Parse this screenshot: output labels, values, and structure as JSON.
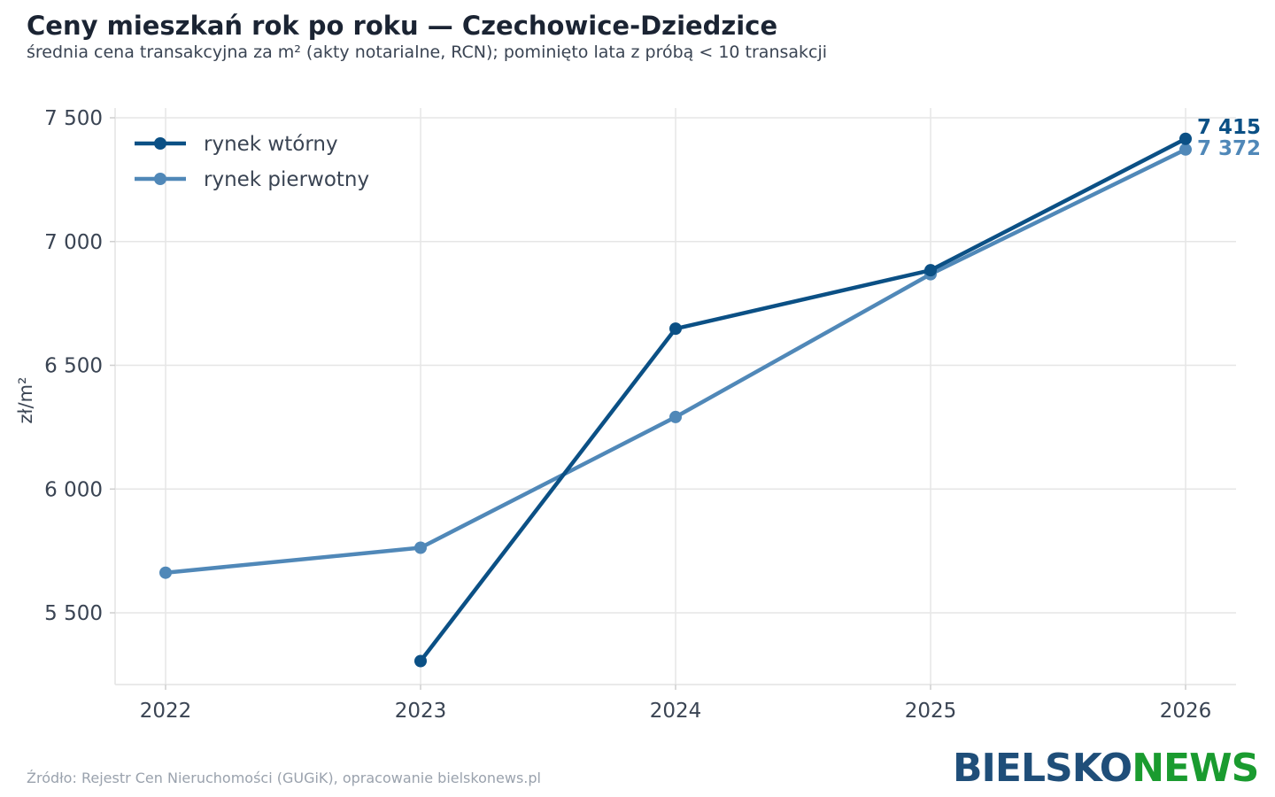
{
  "title": "Ceny mieszkań rok po roku — Czechowice-Dziedzice",
  "subtitle": "średnia cena transakcyjna za m² (akty notarialne, RCN); pominięto lata z próbą < 10 transakcji",
  "source": "Źródło: Rejestr Cen Nieruchomości (GUGiK), opracowanie bielskonews.pl",
  "logo": {
    "part1": "BIELSKO",
    "part2": "NEWS"
  },
  "colors": {
    "secondary": "#0b5085",
    "primary": "#5088b8",
    "grid": "#e6e6e6",
    "text": "#3a4453"
  },
  "chart_data": {
    "type": "line",
    "x": [
      "2022",
      "2023",
      "2024",
      "2025",
      "2026"
    ],
    "ylabel": "zł/m²",
    "ylim": [
      5200,
      7550
    ],
    "yticks": [
      5500,
      6000,
      6500,
      7000,
      7500
    ],
    "ytick_labels": [
      "5 500",
      "6 000",
      "6 500",
      "7 000",
      "7 500"
    ],
    "grid": true,
    "legend_position": "top-left",
    "series": [
      {
        "name": "rynek wtórny",
        "color": "#0b5085",
        "values": [
          null,
          5305,
          6648,
          6884,
          7415
        ],
        "end_label": "7 415"
      },
      {
        "name": "rynek pierwotny",
        "color": "#5088b8",
        "values": [
          5662,
          5763,
          6291,
          6868,
          7372
        ],
        "end_label": "7 372"
      }
    ]
  }
}
